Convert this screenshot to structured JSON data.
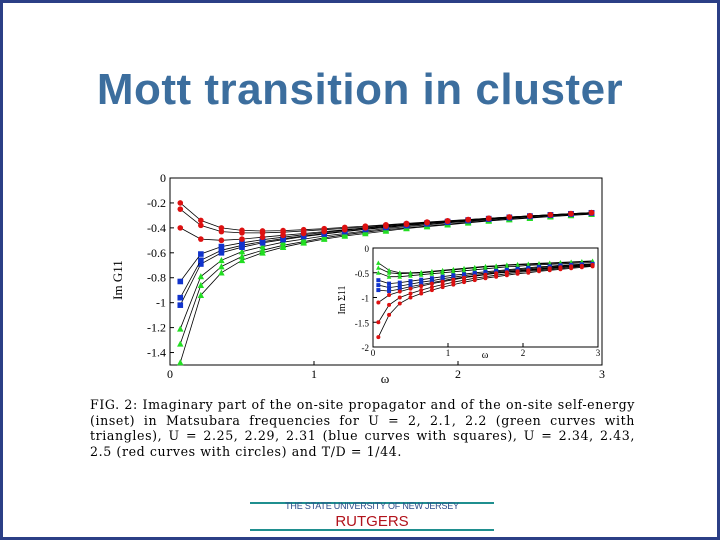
{
  "slide": {
    "title": "Mott transition in cluster"
  },
  "caption": "FIG. 2: Imaginary part of the on-site propagator and of the on-site self-energy (inset) in Matsubara frequencies for U = 2, 2.1, 2.2 (green curves with triangles), U = 2.25, 2.29, 2.31 (blue curves with squares), U = 2.34, 2.43, 2.5 (red curves with circles) and T/D = 1/44.",
  "footer": {
    "institution": "THE STATE UNIVERSITY OF NEW JERSEY",
    "name": "RUTGERS"
  },
  "colors": {
    "green": "#22dd22",
    "blue": "#1133cc",
    "red": "#dd1111",
    "title": "#3c6e9e"
  },
  "chart_data": [
    {
      "type": "line",
      "xlabel": "ω",
      "ylabel": "Im G11",
      "xlim": [
        0,
        3
      ],
      "ylim": [
        -1.5,
        0
      ],
      "x_ticks": [
        "0",
        "1",
        "2",
        "3"
      ],
      "y_ticks": [
        "0",
        "-0.2",
        "-0.4",
        "-0.6",
        "-0.8",
        "-1",
        "-1.2",
        "-1.4"
      ],
      "x": [
        0.0714,
        0.2142,
        0.357,
        0.4998,
        0.6426,
        0.7854,
        0.9282,
        1.071,
        1.2138,
        1.3566,
        1.4994,
        1.6422,
        1.785,
        1.9278,
        2.0706,
        2.2134,
        2.3562,
        2.499,
        2.6418,
        2.7846,
        2.9274
      ],
      "series": [
        {
          "values": [
            -1.48,
            -0.94,
            -0.76,
            -0.66,
            -0.6,
            -0.555,
            -0.52,
            -0.49,
            -0.465,
            -0.445,
            -0.425,
            -0.405,
            -0.39,
            -0.375,
            -0.36,
            -0.345,
            -0.333,
            -0.322,
            -0.31,
            -0.3,
            -0.29
          ],
          "color": "green",
          "marker": "triangle"
        },
        {
          "values": [
            -1.33,
            -0.86,
            -0.71,
            -0.63,
            -0.58,
            -0.54,
            -0.51,
            -0.48,
            -0.455,
            -0.435,
            -0.415,
            -0.4,
            -0.385,
            -0.37,
            -0.355,
            -0.342,
            -0.33,
            -0.318,
            -0.307,
            -0.297,
            -0.288
          ],
          "color": "green",
          "marker": "triangle"
        },
        {
          "values": [
            -1.21,
            -0.79,
            -0.66,
            -0.59,
            -0.55,
            -0.515,
            -0.49,
            -0.465,
            -0.445,
            -0.425,
            -0.405,
            -0.39,
            -0.375,
            -0.36,
            -0.347,
            -0.335,
            -0.323,
            -0.312,
            -0.302,
            -0.292,
            -0.284
          ],
          "color": "green",
          "marker": "triangle"
        },
        {
          "values": [
            -1.02,
            -0.69,
            -0.6,
            -0.555,
            -0.52,
            -0.495,
            -0.47,
            -0.45,
            -0.43,
            -0.413,
            -0.397,
            -0.382,
            -0.368,
            -0.355,
            -0.342,
            -0.33,
            -0.319,
            -0.308,
            -0.298,
            -0.289,
            -0.281
          ],
          "color": "blue",
          "marker": "square"
        },
        {
          "values": [
            -0.96,
            -0.66,
            -0.58,
            -0.54,
            -0.51,
            -0.487,
            -0.465,
            -0.445,
            -0.426,
            -0.409,
            -0.393,
            -0.378,
            -0.365,
            -0.352,
            -0.34,
            -0.328,
            -0.317,
            -0.307,
            -0.297,
            -0.288,
            -0.28
          ],
          "color": "blue",
          "marker": "square"
        },
        {
          "values": [
            -0.83,
            -0.61,
            -0.55,
            -0.52,
            -0.495,
            -0.475,
            -0.455,
            -0.437,
            -0.419,
            -0.403,
            -0.388,
            -0.374,
            -0.361,
            -0.349,
            -0.337,
            -0.326,
            -0.315,
            -0.305,
            -0.296,
            -0.287,
            -0.279
          ],
          "color": "blue",
          "marker": "square"
        },
        {
          "values": [
            -0.4,
            -0.49,
            -0.5,
            -0.49,
            -0.475,
            -0.46,
            -0.445,
            -0.43,
            -0.415,
            -0.4,
            -0.386,
            -0.372,
            -0.359,
            -0.347,
            -0.335,
            -0.324,
            -0.314,
            -0.304,
            -0.295,
            -0.286,
            -0.278
          ],
          "color": "red",
          "marker": "circle"
        },
        {
          "values": [
            -0.25,
            -0.38,
            -0.43,
            -0.44,
            -0.44,
            -0.435,
            -0.425,
            -0.415,
            -0.404,
            -0.392,
            -0.38,
            -0.368,
            -0.356,
            -0.345,
            -0.334,
            -0.323,
            -0.313,
            -0.304,
            -0.295,
            -0.286,
            -0.278
          ],
          "color": "red",
          "marker": "circle"
        },
        {
          "values": [
            -0.2,
            -0.34,
            -0.4,
            -0.42,
            -0.425,
            -0.422,
            -0.415,
            -0.406,
            -0.396,
            -0.386,
            -0.375,
            -0.364,
            -0.353,
            -0.343,
            -0.333,
            -0.323,
            -0.313,
            -0.304,
            -0.295,
            -0.286,
            -0.278
          ],
          "color": "red",
          "marker": "circle"
        }
      ]
    },
    {
      "type": "line",
      "inset": true,
      "xlabel": "ω",
      "ylabel": "Im Σ11",
      "xlim": [
        0,
        3
      ],
      "ylim": [
        -2,
        0
      ],
      "x_ticks": [
        "0",
        "1",
        "2",
        "3"
      ],
      "y_ticks": [
        "0",
        "-0.5",
        "-1",
        "-1.5",
        "-2"
      ],
      "x": [
        0.0714,
        0.2142,
        0.357,
        0.4998,
        0.6426,
        0.7854,
        0.9282,
        1.071,
        1.2138,
        1.3566,
        1.4994,
        1.6422,
        1.785,
        1.9278,
        2.0706,
        2.2134,
        2.3562,
        2.499,
        2.6418,
        2.7846,
        2.9274
      ],
      "series": [
        {
          "values": [
            -0.3,
            -0.45,
            -0.5,
            -0.5,
            -0.49,
            -0.47,
            -0.45,
            -0.43,
            -0.41,
            -0.39,
            -0.37,
            -0.36,
            -0.34,
            -0.33,
            -0.32,
            -0.31,
            -0.3,
            -0.29,
            -0.28,
            -0.27,
            -0.26
          ],
          "color": "green",
          "marker": "triangle"
        },
        {
          "values": [
            -0.4,
            -0.5,
            -0.52,
            -0.51,
            -0.5,
            -0.48,
            -0.46,
            -0.44,
            -0.42,
            -0.4,
            -0.38,
            -0.37,
            -0.35,
            -0.34,
            -0.33,
            -0.32,
            -0.31,
            -0.3,
            -0.29,
            -0.28,
            -0.27
          ],
          "color": "green",
          "marker": "triangle"
        },
        {
          "values": [
            -0.5,
            -0.58,
            -0.58,
            -0.56,
            -0.54,
            -0.52,
            -0.5,
            -0.48,
            -0.46,
            -0.44,
            -0.42,
            -0.4,
            -0.38,
            -0.37,
            -0.35,
            -0.34,
            -0.33,
            -0.32,
            -0.31,
            -0.3,
            -0.29
          ],
          "color": "green",
          "marker": "triangle"
        },
        {
          "values": [
            -0.65,
            -0.72,
            -0.7,
            -0.67,
            -0.64,
            -0.61,
            -0.58,
            -0.55,
            -0.53,
            -0.5,
            -0.48,
            -0.46,
            -0.44,
            -0.42,
            -0.4,
            -0.38,
            -0.37,
            -0.35,
            -0.34,
            -0.33,
            -0.32
          ],
          "color": "blue",
          "marker": "square"
        },
        {
          "values": [
            -0.75,
            -0.8,
            -0.77,
            -0.73,
            -0.69,
            -0.66,
            -0.62,
            -0.59,
            -0.56,
            -0.53,
            -0.51,
            -0.48,
            -0.46,
            -0.44,
            -0.42,
            -0.4,
            -0.38,
            -0.37,
            -0.35,
            -0.34,
            -0.33
          ],
          "color": "blue",
          "marker": "square"
        },
        {
          "values": [
            -0.85,
            -0.87,
            -0.83,
            -0.78,
            -0.74,
            -0.7,
            -0.66,
            -0.62,
            -0.59,
            -0.56,
            -0.53,
            -0.5,
            -0.48,
            -0.46,
            -0.44,
            -0.42,
            -0.4,
            -0.38,
            -0.37,
            -0.35,
            -0.34
          ],
          "color": "blue",
          "marker": "square"
        },
        {
          "values": [
            -1.1,
            -0.95,
            -0.88,
            -0.82,
            -0.77,
            -0.72,
            -0.68,
            -0.64,
            -0.6,
            -0.57,
            -0.54,
            -0.51,
            -0.49,
            -0.47,
            -0.45,
            -0.43,
            -0.41,
            -0.39,
            -0.37,
            -0.36,
            -0.34
          ],
          "color": "red",
          "marker": "circle"
        },
        {
          "values": [
            -1.5,
            -1.15,
            -1.0,
            -0.92,
            -0.85,
            -0.79,
            -0.74,
            -0.69,
            -0.65,
            -0.61,
            -0.58,
            -0.55,
            -0.52,
            -0.49,
            -0.47,
            -0.45,
            -0.43,
            -0.41,
            -0.39,
            -0.37,
            -0.36
          ],
          "color": "red",
          "marker": "circle"
        },
        {
          "values": [
            -1.8,
            -1.35,
            -1.12,
            -1.0,
            -0.92,
            -0.85,
            -0.79,
            -0.74,
            -0.69,
            -0.65,
            -0.61,
            -0.58,
            -0.55,
            -0.52,
            -0.5,
            -0.47,
            -0.45,
            -0.43,
            -0.41,
            -0.39,
            -0.37
          ],
          "color": "red",
          "marker": "circle"
        }
      ]
    }
  ]
}
